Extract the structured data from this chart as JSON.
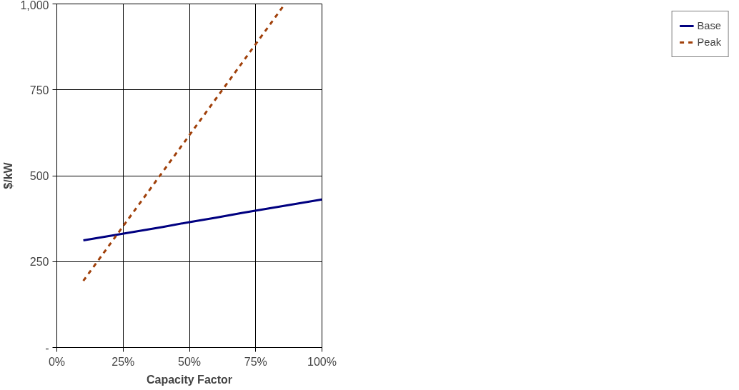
{
  "chart_data": {
    "type": "line",
    "xlabel": "Capacity Factor",
    "ylabel": "$/kW",
    "xlim": [
      0,
      100
    ],
    "xticks": [
      {
        "value": 0,
        "label": "0%"
      },
      {
        "value": 25,
        "label": "25%"
      },
      {
        "value": 50,
        "label": "50%"
      },
      {
        "value": 75,
        "label": "75%"
      },
      {
        "value": 100,
        "label": "100%"
      }
    ],
    "ylim": [
      0,
      1000
    ],
    "yticks": [
      {
        "value": 0,
        "label": "-"
      },
      250,
      500,
      750,
      {
        "value": 1000,
        "label": "1,000"
      }
    ],
    "grid": true,
    "legend": "right",
    "series": [
      {
        "name": "Base",
        "color": "#000080",
        "line_style": "solid",
        "x": [
          10,
          20,
          30,
          40,
          50,
          60,
          70,
          80,
          90,
          100
        ],
        "values": [
          312,
          325,
          338,
          351,
          365,
          378,
          392,
          405,
          418,
          431
        ]
      },
      {
        "name": "Peak",
        "color": "#a0400a",
        "line_style": "dashed",
        "x": [
          10,
          20,
          30,
          40,
          50,
          60,
          70,
          80,
          86
        ],
        "values": [
          194,
          300,
          406,
          512,
          618,
          724,
          830,
          936,
          1000
        ]
      }
    ]
  }
}
